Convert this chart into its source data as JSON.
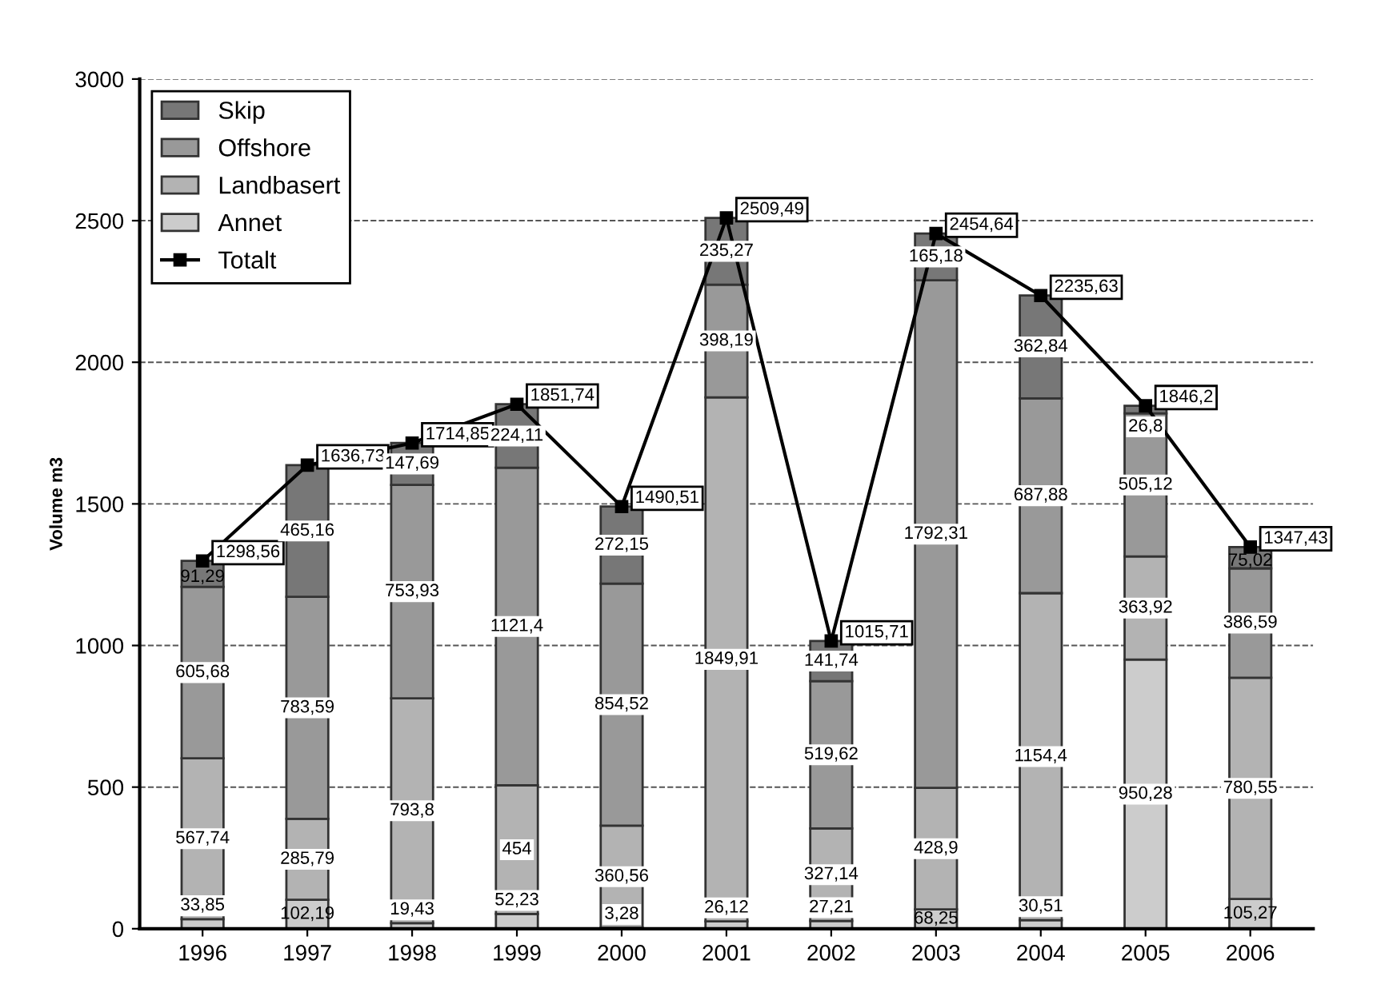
{
  "chart_data": {
    "type": "bar",
    "stacked": true,
    "ylabel": "Volume m3",
    "categories": [
      "1996",
      "1997",
      "1998",
      "1999",
      "2000",
      "2001",
      "2002",
      "2003",
      "2004",
      "2005",
      "2006"
    ],
    "ylim": [
      0,
      3000
    ],
    "yticks": [
      0,
      500,
      1000,
      1500,
      2000,
      2500,
      3000
    ],
    "grid": "y",
    "legend": "top left",
    "series": [
      {
        "name": "Annet",
        "color": "#cccccc",
        "values": [
          33.85,
          102.19,
          19.43,
          52.23,
          3.28,
          26.12,
          27.21,
          68.25,
          30.51,
          950.28,
          105.27
        ],
        "value_labels": [
          "33,85",
          "102,19",
          "19,43",
          "52,23",
          "3,28",
          "26,12",
          "27,21",
          "68,25",
          "30,51",
          "950,28",
          "105,27"
        ]
      },
      {
        "name": "Landbasert",
        "color": "#b3b3b3",
        "values": [
          567.74,
          285.79,
          793.8,
          454,
          360.56,
          1849.91,
          327.14,
          428.9,
          1154.4,
          363.92,
          780.55
        ],
        "value_labels": [
          "567,74",
          "285,79",
          "793,8",
          "454",
          "360,56",
          "1849,91",
          "327,14",
          "428,9",
          "1154,4",
          "363,92",
          "780,55"
        ]
      },
      {
        "name": "Offshore",
        "color": "#999999",
        "values": [
          605.68,
          783.59,
          753.93,
          1121.4,
          854.52,
          398.19,
          519.62,
          1792.31,
          687.88,
          505.12,
          386.59
        ],
        "value_labels": [
          "605,68",
          "783,59",
          "753,93",
          "1121,4",
          "854,52",
          "398,19",
          "519,62",
          "1792,31",
          "687,88",
          "505,12",
          "386,59"
        ]
      },
      {
        "name": "Skip",
        "color": "#777777",
        "values": [
          91.29,
          465.16,
          147.69,
          224.11,
          272.15,
          235.27,
          141.74,
          165.18,
          362.84,
          26.8,
          75.02
        ],
        "value_labels": [
          "91,29",
          "465,16",
          "147,69",
          "224,11",
          "272,15",
          "235,27",
          "141,74",
          "165,18",
          "362,84",
          "26,8",
          "75,02"
        ]
      },
      {
        "name": "Totalt",
        "type": "line",
        "color": "#000000",
        "marker": "square",
        "values": [
          1298.56,
          1636.73,
          1714.85,
          1851.74,
          1490.51,
          2509.49,
          1015.71,
          2454.64,
          2235.63,
          1846.2,
          1347.43
        ],
        "value_labels": [
          "1298,56",
          "1636,73",
          "1714,85",
          "1851,74",
          "1490,51",
          "2509,49",
          "1015,71",
          "2454,64",
          "2235,63",
          "1846,2",
          "1347,43"
        ]
      }
    ]
  }
}
